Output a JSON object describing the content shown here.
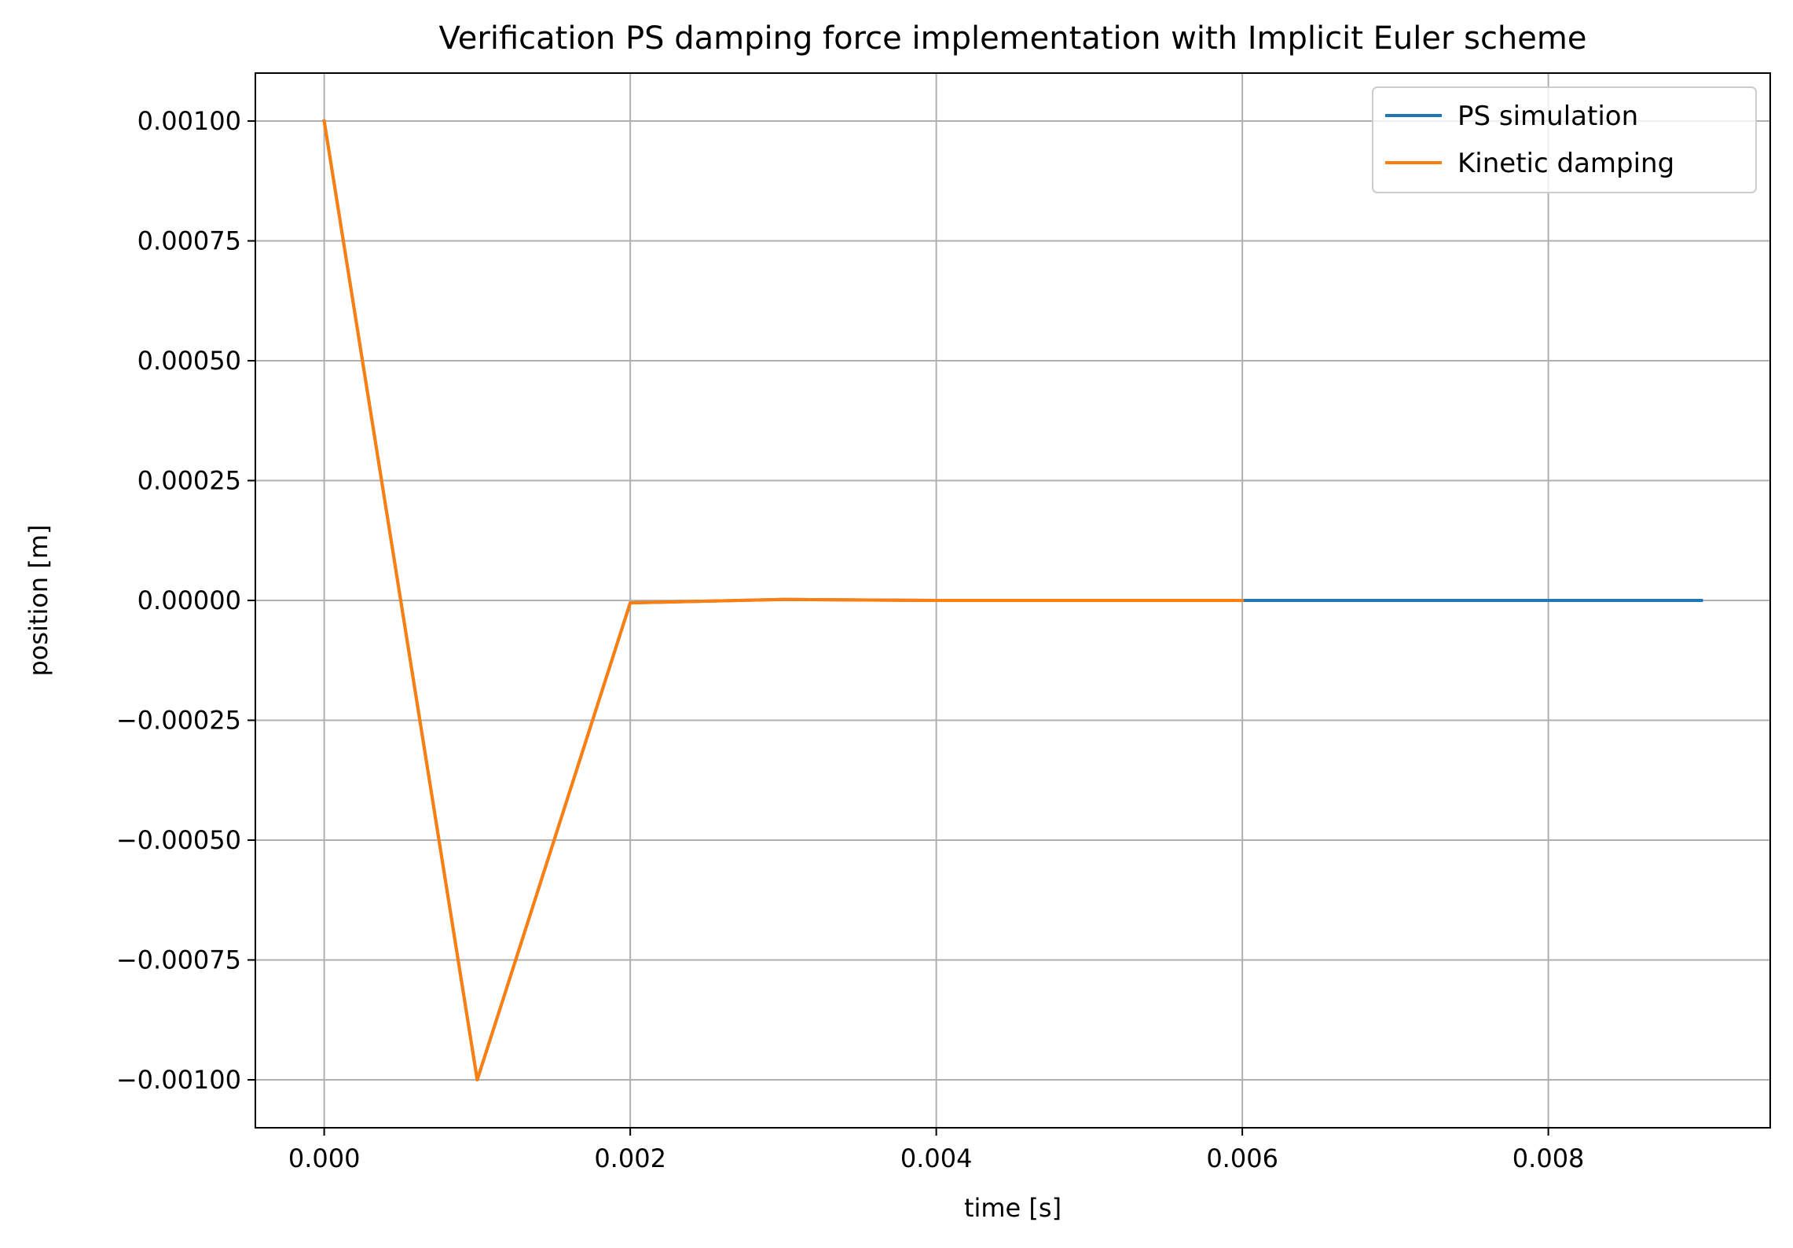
{
  "chart_data": {
    "type": "line",
    "title": "Verification PS damping force implementation with Implicit Euler scheme",
    "xlabel": "time [s]",
    "ylabel": "position [m]",
    "xlim": [
      -0.00045,
      0.00945
    ],
    "ylim": [
      -0.0011,
      0.0011
    ],
    "xticks": [
      0.0,
      0.002,
      0.004,
      0.006,
      0.008
    ],
    "xtick_labels": [
      "0.000",
      "0.002",
      "0.004",
      "0.006",
      "0.008"
    ],
    "yticks": [
      0.001,
      0.00075,
      0.0005,
      0.00025,
      0.0,
      -0.00025,
      -0.0005,
      -0.00075,
      -0.001
    ],
    "ytick_labels": [
      "0.00100",
      "0.00075",
      "0.00050",
      "0.00025",
      "0.00000",
      "−0.00025",
      "−0.00050",
      "−0.00075",
      "−0.00100"
    ],
    "grid": true,
    "legend_position": "top-right",
    "series": [
      {
        "name": "PS simulation",
        "color": "#1f77b4",
        "x": [
          0.0,
          0.001,
          0.002,
          0.003,
          0.004,
          0.005,
          0.006,
          0.007,
          0.008,
          0.009
        ],
        "y": [
          0.001,
          -0.001,
          -5e-06,
          2e-06,
          0.0,
          0.0,
          0.0,
          0.0,
          0.0,
          0.0
        ]
      },
      {
        "name": "Kinetic damping",
        "color": "#ff7f0e",
        "x": [
          0.0,
          0.001,
          0.002,
          0.003,
          0.004,
          0.005,
          0.006
        ],
        "y": [
          0.001,
          -0.001,
          -5e-06,
          2e-06,
          0.0,
          0.0,
          0.0
        ]
      }
    ]
  }
}
